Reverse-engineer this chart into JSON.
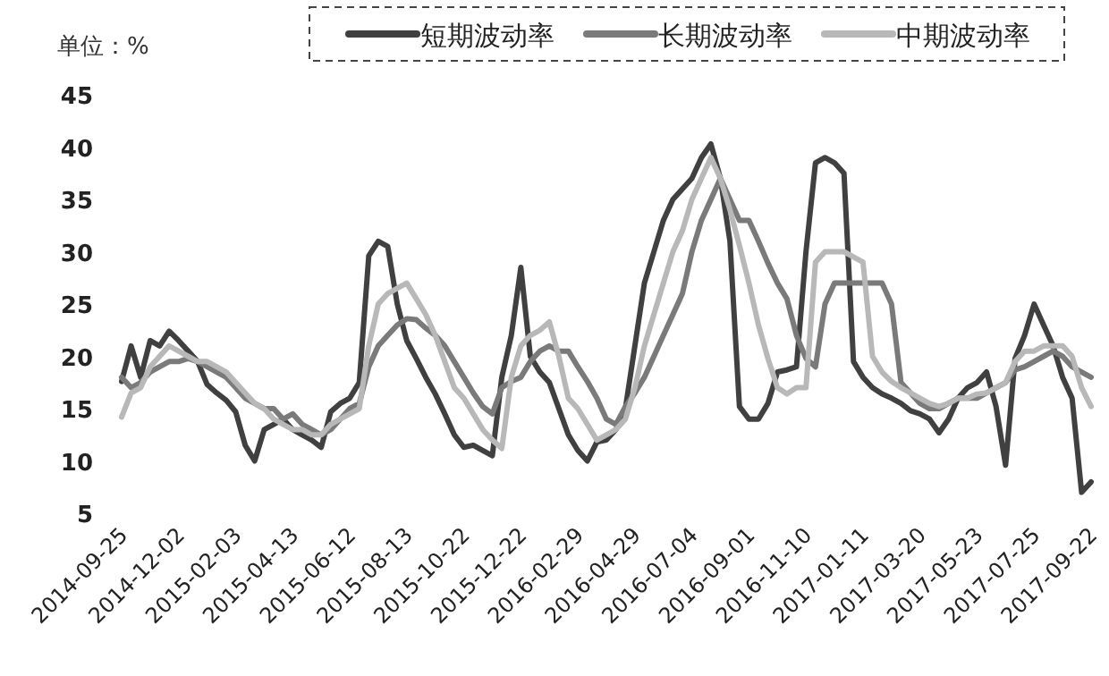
{
  "chart_data": {
    "type": "line",
    "ylabel": "单位：%",
    "legend": "top",
    "categories": [
      "2014-09-25",
      null,
      null,
      null,
      null,
      null,
      "2014-12-02",
      null,
      null,
      null,
      null,
      null,
      "2015-02-03",
      null,
      null,
      null,
      null,
      null,
      "2015-04-13",
      null,
      null,
      null,
      null,
      null,
      "2015-06-12",
      null,
      null,
      null,
      null,
      null,
      "2015-08-13",
      null,
      null,
      null,
      null,
      null,
      "2015-10-22",
      null,
      null,
      null,
      null,
      null,
      "2015-12-22",
      null,
      null,
      null,
      null,
      null,
      "2016-02-29",
      null,
      null,
      null,
      null,
      null,
      "2016-04-29",
      null,
      null,
      null,
      null,
      null,
      "2016-07-04",
      null,
      null,
      null,
      null,
      null,
      "2016-09-01",
      null,
      null,
      null,
      null,
      null,
      "2016-11-10",
      null,
      null,
      null,
      null,
      null,
      "2017-01-11",
      null,
      null,
      null,
      null,
      null,
      "2017-03-20",
      null,
      null,
      null,
      null,
      null,
      "2017-05-23",
      null,
      null,
      null,
      null,
      null,
      "2017-07-25",
      null,
      null,
      null,
      null,
      null,
      "2017-09-22"
    ],
    "ylim": [
      5,
      45
    ],
    "yticks": [
      5,
      10,
      15,
      20,
      25,
      30,
      35,
      40,
      45
    ],
    "series": [
      {
        "name": "短期波动率",
        "color": "#404040",
        "values": [
          17.6,
          21,
          18,
          21.5,
          21,
          22.4,
          21.5,
          20.5,
          19.5,
          17.3,
          16.5,
          15.8,
          14.7,
          11.5,
          10,
          13,
          13.5,
          14,
          13,
          12.5,
          12,
          11.3,
          14.7,
          15.5,
          16,
          17.5,
          29.6,
          31,
          30.5,
          25,
          21.5,
          19.8,
          18,
          16.4,
          14.5,
          12.5,
          11.3,
          11.5,
          11,
          10.5,
          18,
          22,
          28.5,
          20,
          18.5,
          17.5,
          15,
          12.5,
          11,
          10,
          11.8,
          12,
          13,
          15,
          21,
          27,
          30,
          33,
          35,
          36,
          37,
          39,
          40.3,
          37,
          31,
          15.2,
          14,
          14,
          15.5,
          18.5,
          18.7,
          19,
          30,
          38.5,
          39,
          38.5,
          37.5,
          19.5,
          18,
          17,
          16.4,
          16,
          15.5,
          14.8,
          14.5,
          14,
          12.7,
          14,
          16,
          17,
          17.5,
          18.5,
          15.2,
          9.6,
          19.8,
          22,
          25,
          23,
          21,
          18,
          16,
          7,
          8
        ]
      },
      {
        "name": "长期波动率",
        "color": "#7a7a7a",
        "values": [
          18,
          17,
          17.5,
          18.5,
          19,
          19.5,
          19.5,
          19.8,
          19.5,
          19,
          18.5,
          18,
          17,
          16,
          15.5,
          15,
          15,
          14,
          14.5,
          13.5,
          13,
          12.5,
          13,
          14,
          15,
          15.5,
          19,
          21,
          22,
          23,
          23.6,
          23.5,
          22.7,
          22,
          21,
          19.5,
          18,
          16.5,
          15.2,
          14.5,
          17,
          17.6,
          18,
          19.5,
          20.5,
          21,
          20.5,
          20.5,
          19,
          17.6,
          16,
          14,
          13.5,
          15.2,
          16.5,
          18,
          20,
          22,
          24,
          26,
          30,
          33,
          35,
          37,
          35,
          33,
          33,
          31,
          28.9,
          27,
          25.5,
          22,
          19.8,
          19,
          25,
          27,
          27,
          27,
          27,
          27,
          27,
          25,
          17.5,
          16.5,
          15.5,
          15,
          15,
          15.5,
          16,
          16,
          16,
          16.5,
          17,
          17.5,
          18.7,
          19,
          19.5,
          20,
          20.5,
          20,
          19,
          18.5,
          18
        ]
      },
      {
        "name": "中期波动率",
        "color": "#b8b8b8",
        "values": [
          14.2,
          16.5,
          17,
          19,
          20,
          21,
          20.5,
          20,
          19.5,
          19.5,
          19,
          18.5,
          17.5,
          16.5,
          15.5,
          15,
          14,
          13.5,
          13,
          13,
          12.5,
          12.5,
          13.5,
          14,
          14.5,
          15,
          21,
          25,
          26,
          26.5,
          27,
          25.5,
          24,
          22,
          19.5,
          17,
          16,
          14.5,
          13,
          12,
          11.2,
          18,
          21,
          22,
          22.5,
          23.3,
          20,
          16,
          15,
          13.5,
          12,
          12.5,
          13,
          14,
          17,
          21,
          24,
          27,
          30,
          32,
          35,
          37,
          39,
          37,
          34,
          30.6,
          27,
          23,
          19.8,
          17,
          16.4,
          17,
          17,
          29,
          30,
          30,
          30,
          29.5,
          29,
          20,
          18.5,
          17.6,
          17,
          16.5,
          16,
          15.5,
          15.2,
          15.5,
          16,
          16,
          16.4,
          16.5,
          17,
          17.5,
          19.5,
          20.5,
          20.5,
          21,
          21,
          21,
          20,
          17,
          15.2
        ]
      }
    ]
  }
}
